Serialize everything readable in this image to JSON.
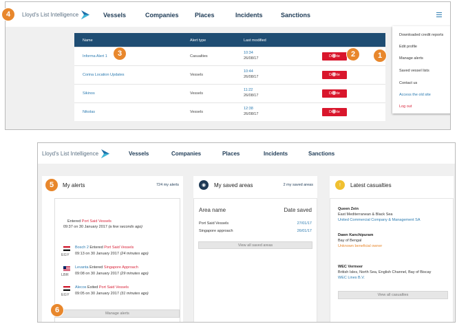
{
  "brand": "Lloyd's List Intelligence",
  "nav": [
    "Vessels",
    "Companies",
    "Places",
    "Incidents",
    "Sanctions"
  ],
  "menu_icon": "hamburger-icon",
  "top": {
    "headers": [
      "Name",
      "Alert type",
      "Last modified"
    ],
    "rows": [
      {
        "name": "Informa Alert 1",
        "type": "Casualties",
        "time": "10:34",
        "date": "26/08/17",
        "action": "Delete"
      },
      {
        "name": "Corina Location Updates",
        "type": "Vessels",
        "time": "10:44",
        "date": "26/08/17",
        "action": "Delete"
      },
      {
        "name": "Sikinos",
        "type": "Vessels",
        "time": "11:22",
        "date": "26/08/17",
        "action": "Delete"
      },
      {
        "name": "Nikolas",
        "type": "Vessels",
        "time": "12:38",
        "date": "26/08/17",
        "action": "Delete"
      }
    ],
    "menu": [
      "Downloaded credit reports",
      "Edit profile",
      "Manage alerts",
      "Saved vessel lists",
      "Contact us",
      "Access the old site",
      "Log out"
    ]
  },
  "badges": [
    "1",
    "2",
    "3",
    "4",
    "5",
    "6"
  ],
  "alerts": {
    "title": "My alerts",
    "link": "724 my alerts",
    "first": {
      "pre": "Entered ",
      "place": "Port Said Vessels",
      "time": "09:37 on 30 January 2017 ",
      "ago": "(a few seconds ago)"
    },
    "items": [
      {
        "code": "EGY",
        "vessel": "Bosch 2",
        "verb": " Entered ",
        "place": "Port Said Vessels",
        "time": "09:13 on 30 January 2017 ",
        "ago": "(24 minutes ago)"
      },
      {
        "code": "LBR",
        "vessel": "Levanta",
        "verb": " Entered ",
        "place": "Singapore Approach",
        "time": "09:08 on 30 January 2017 ",
        "ago": "(29 minutes ago)"
      },
      {
        "code": "EGY",
        "vessel": "Alecos",
        "verb": " Exited ",
        "place": "Port Said Vessels",
        "time": "09:05 on 30 January 2017 ",
        "ago": "(31 minutes ago)"
      }
    ],
    "button": "Manage alerts"
  },
  "saved": {
    "title": "My saved areas",
    "link": "2 my saved areas",
    "col1": "Area name",
    "col2": "Date saved",
    "rows": [
      {
        "name": "Port Said Vessels",
        "date": "27/01/17"
      },
      {
        "name": "Singapore approach",
        "date": "26/01/17"
      }
    ],
    "button": "View all saved areas"
  },
  "casualties": {
    "title": "Latest casualties",
    "items": [
      {
        "vessel": "Queen Zein",
        "region": "East Mediterranean & Black Sea",
        "company": "United Commercial Company & Management SA",
        "company_style": "blue"
      },
      {
        "vessel": "Dawn Kanchipuram",
        "region": "Bay of Bengal",
        "company": "Unknown beneficial owner",
        "company_style": "orange"
      },
      {
        "vessel": "WEC Vermeer",
        "region": "British Isles, North Sea, English Channel, Bay of Biscay",
        "company": "WEC Lines B.V.",
        "company_style": "blue"
      }
    ],
    "button": "View all casualties"
  },
  "colors": {
    "navy": "#1f4d73",
    "badge": "#e8872c",
    "delete": "#d9162c",
    "link": "#2a7ab0",
    "alert_red": "#d9253b"
  }
}
